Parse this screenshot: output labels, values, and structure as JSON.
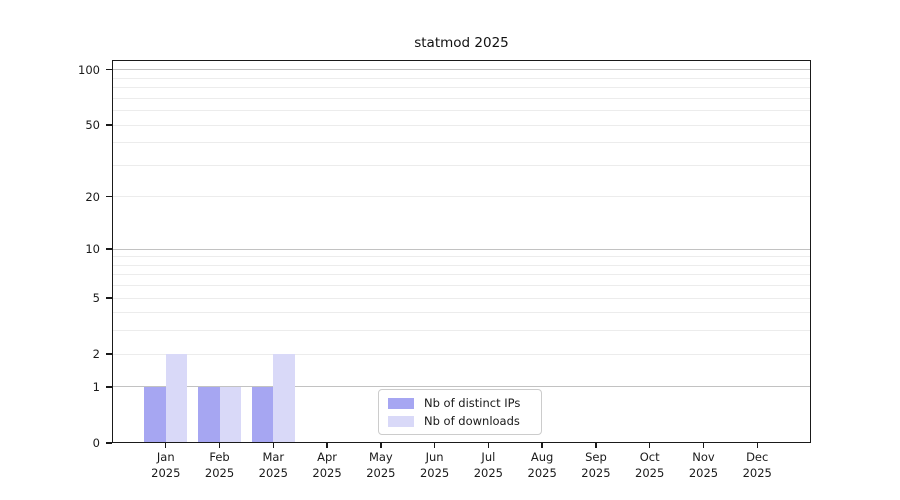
{
  "chart_data": {
    "type": "bar",
    "title": "statmod 2025",
    "categories": [
      {
        "month": "Jan",
        "year": "2025"
      },
      {
        "month": "Feb",
        "year": "2025"
      },
      {
        "month": "Mar",
        "year": "2025"
      },
      {
        "month": "Apr",
        "year": "2025"
      },
      {
        "month": "May",
        "year": "2025"
      },
      {
        "month": "Jun",
        "year": "2025"
      },
      {
        "month": "Jul",
        "year": "2025"
      },
      {
        "month": "Aug",
        "year": "2025"
      },
      {
        "month": "Sep",
        "year": "2025"
      },
      {
        "month": "Oct",
        "year": "2025"
      },
      {
        "month": "Nov",
        "year": "2025"
      },
      {
        "month": "Dec",
        "year": "2025"
      }
    ],
    "series": [
      {
        "name": "Nb of distinct IPs",
        "color": "#a6a6f2",
        "values": [
          1,
          1,
          1,
          0,
          0,
          0,
          0,
          0,
          0,
          0,
          0,
          0
        ]
      },
      {
        "name": "Nb of downloads",
        "color": "#d9d9f8",
        "values": [
          2,
          1,
          2,
          0,
          0,
          0,
          0,
          0,
          0,
          0,
          0,
          0
        ]
      }
    ],
    "xlabel": "",
    "ylabel": "",
    "y_scale": "log10(1+x)",
    "ylim": [
      0,
      113
    ],
    "y_ticks": [
      0,
      1,
      2,
      5,
      10,
      20,
      50,
      100
    ],
    "grid": true,
    "gridlines": {
      "major_values": [
        1,
        10,
        100
      ],
      "minor_values": [
        2,
        3,
        4,
        5,
        6,
        7,
        8,
        9,
        20,
        30,
        40,
        50,
        60,
        70,
        80,
        90
      ],
      "major_color": "#c2c2c2",
      "minor_color": "#ececec"
    },
    "legend": {
      "position": "inside-bottom-center"
    }
  }
}
